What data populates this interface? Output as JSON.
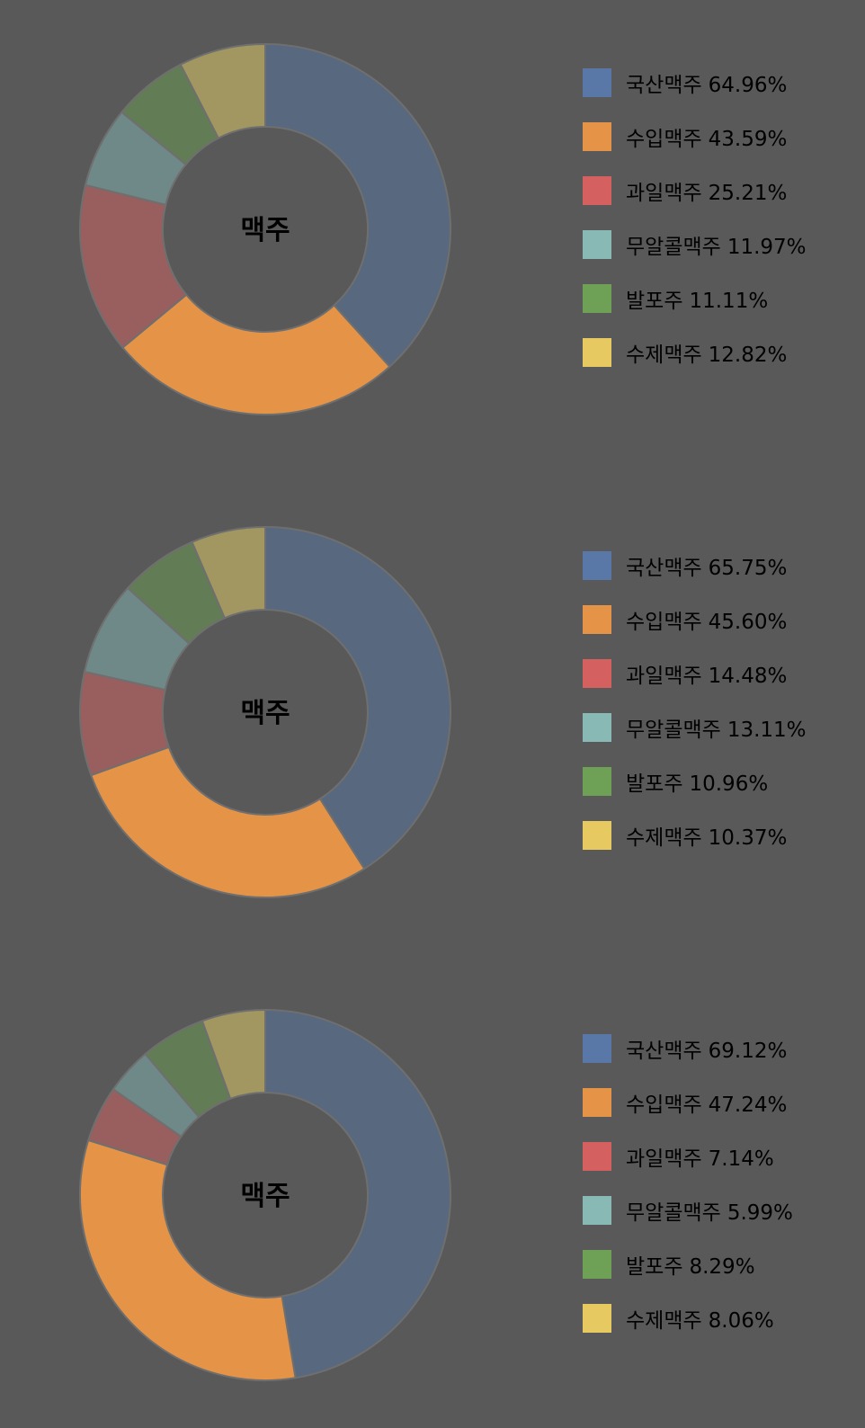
{
  "colors": {
    "background": "#595959",
    "slice_border": "#6f6f6f",
    "legend_swatches": [
      "#5978a8",
      "#e59447",
      "#d56060",
      "#88b9b5",
      "#6ea155",
      "#e7c961"
    ],
    "slice_fills": [
      "#58687e",
      "#e59447",
      "#995f5e",
      "#6f8888",
      "#627c55",
      "#a29760"
    ]
  },
  "chart_data": [
    {
      "type": "pie",
      "center_label": "맥주",
      "legend_position": "right",
      "categories": [
        "국산맥주",
        "수입맥주",
        "과일맥주",
        "무알콜맥주",
        "발포주",
        "수제맥주"
      ],
      "legend_values": [
        "64.96%",
        "43.59%",
        "25.21%",
        "11.97%",
        "11.11%",
        "12.82%"
      ],
      "values": [
        64.96,
        43.59,
        25.21,
        11.97,
        11.11,
        12.82
      ]
    },
    {
      "type": "pie",
      "center_label": "맥주",
      "legend_position": "right",
      "categories": [
        "국산맥주",
        "수입맥주",
        "과일맥주",
        "무알콜맥주",
        "발포주",
        "수제맥주"
      ],
      "legend_values": [
        "65.75%",
        "45.60%",
        "14.48%",
        "13.11%",
        "10.96%",
        "10.37%"
      ],
      "values": [
        65.75,
        45.6,
        14.48,
        13.11,
        10.96,
        10.37
      ]
    },
    {
      "type": "pie",
      "center_label": "맥주",
      "legend_position": "right",
      "categories": [
        "국산맥주",
        "수입맥주",
        "과일맥주",
        "무알콜맥주",
        "발포주",
        "수제맥주"
      ],
      "legend_values": [
        "69.12%",
        "47.24%",
        "7.14%",
        "5.99%",
        "8.29%",
        "8.06%"
      ],
      "values": [
        69.12,
        47.24,
        7.14,
        5.99,
        8.29,
        8.06
      ]
    }
  ]
}
